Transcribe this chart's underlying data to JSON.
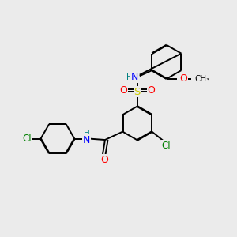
{
  "bg_color": "#ebebeb",
  "bond_color": "#000000",
  "atom_colors": {
    "N": "#0000ff",
    "O": "#ff0000",
    "S": "#cccc00",
    "Cl": "#008000",
    "H": "#008080"
  },
  "figsize": [
    3.0,
    3.0
  ],
  "dpi": 100
}
